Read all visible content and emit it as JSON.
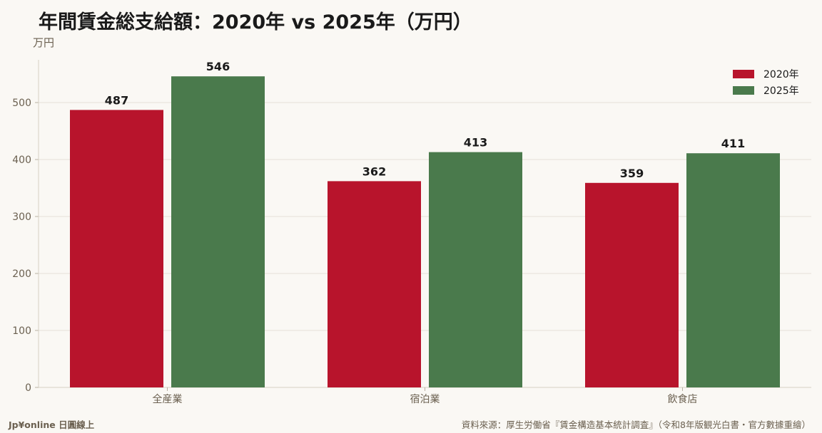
{
  "title": "年間賃金総支給額：2020年 vs 2025年（万円）",
  "unit_label": "万円",
  "footer": {
    "brand": "Jp¥online 日圓線上",
    "source": "資料來源：厚生労働省『賃金構造基本統計調査』（令和8年版観光白書・官方數據重繪）"
  },
  "colors": {
    "series_2020": "#b8142c",
    "series_2025": "#4a7a4c",
    "grid": "#e6e1d8",
    "axis_text": "#6b6050",
    "label_text": "#1a1a1a"
  },
  "chart_data": {
    "type": "bar",
    "categories": [
      "全産業",
      "宿泊業",
      "飲食店"
    ],
    "series": [
      {
        "name": "2020年",
        "values": [
          487,
          362,
          359
        ]
      },
      {
        "name": "2025年",
        "values": [
          546,
          413,
          411
        ]
      }
    ],
    "ylabel": "万円",
    "ylim": [
      0,
      575
    ],
    "yticks": [
      0,
      100,
      200,
      300,
      400,
      500
    ],
    "grid": true,
    "legend_position": "top-right",
    "data_labels": true
  }
}
